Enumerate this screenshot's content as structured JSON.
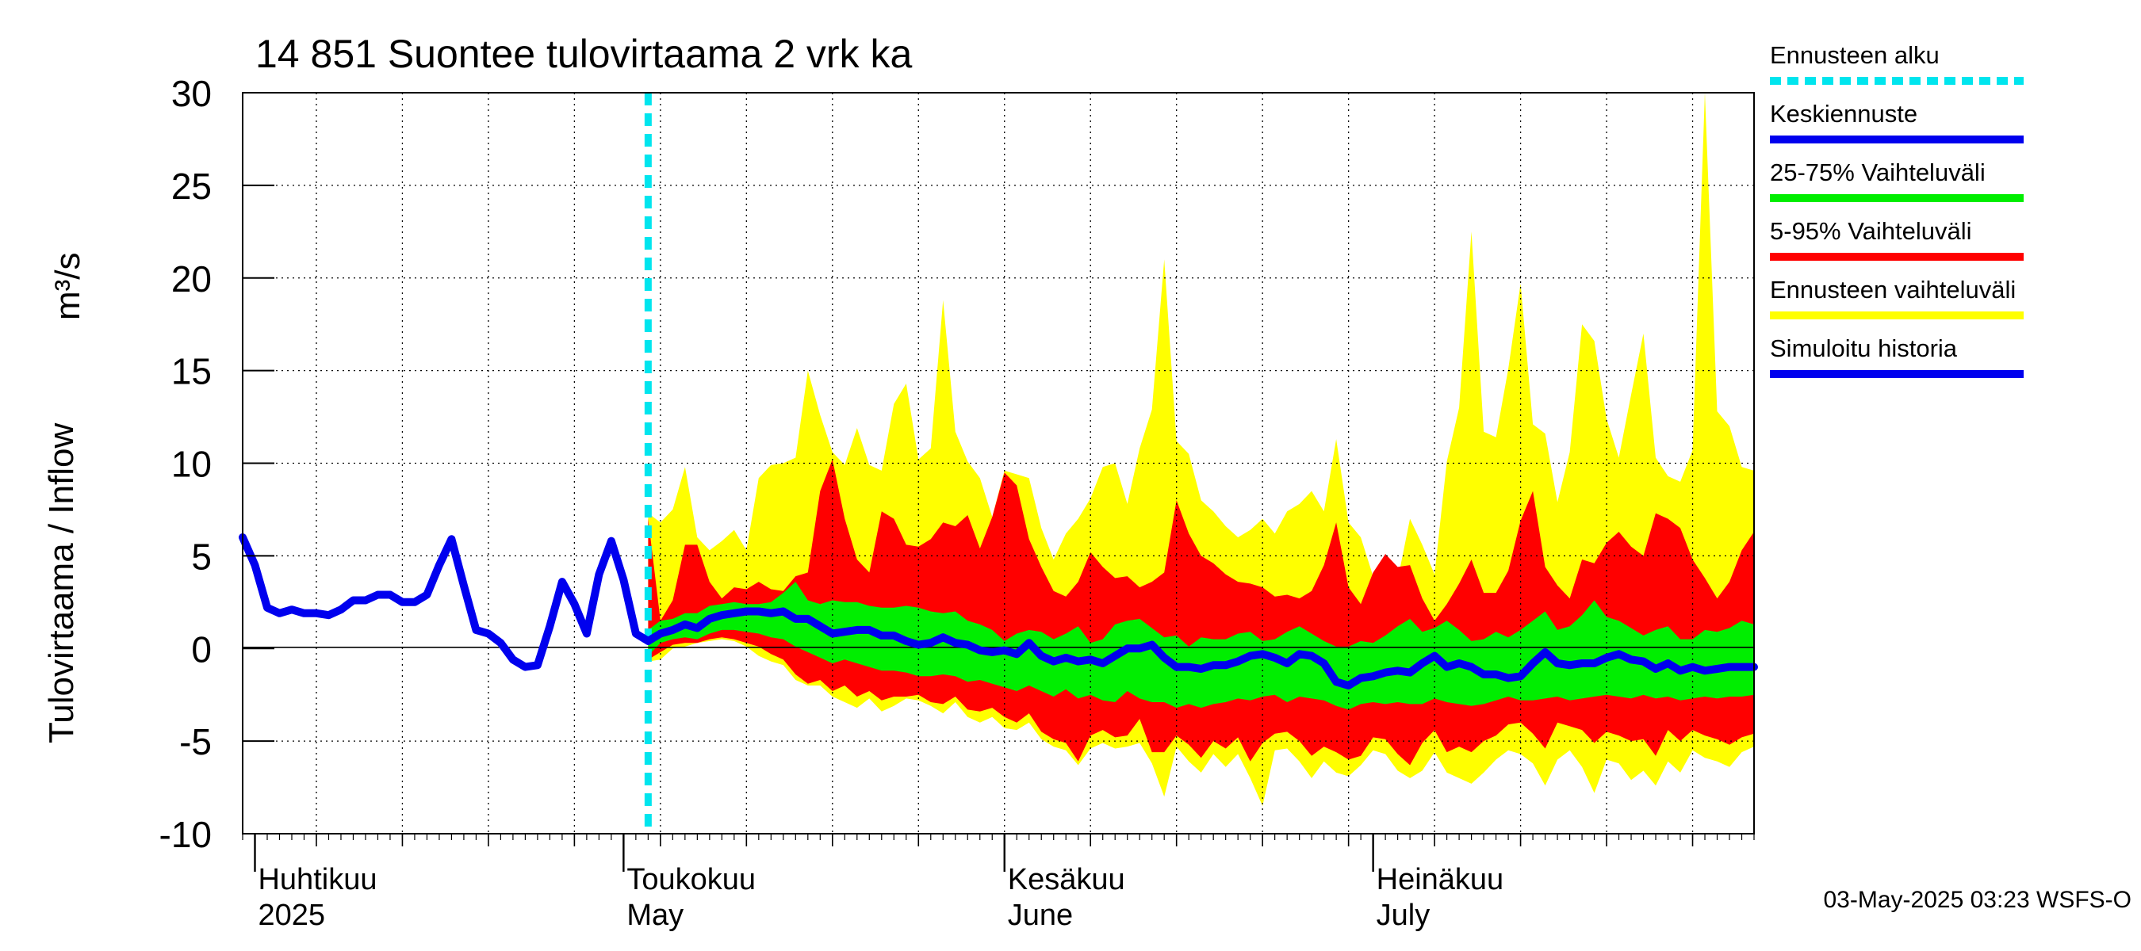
{
  "chart_data": {
    "type": "area",
    "title": "14 851 Suontee tulovirtaama 2 vrk ka",
    "ylabel": "Tulovirtaama / Inflow",
    "yunit": "m³/s",
    "ylim": [
      -10,
      30
    ],
    "yticks": [
      30,
      25,
      20,
      15,
      10,
      5,
      0,
      -5,
      -10
    ],
    "xlim": [
      "2025-03-31",
      "2025-08-01"
    ],
    "grid": true,
    "months": [
      {
        "fi": "Huhtikuu",
        "en": "2025",
        "date": "2025-04-01"
      },
      {
        "fi": "Toukokuu",
        "en": "May",
        "date": "2025-05-01"
      },
      {
        "fi": "Kesäkuu",
        "en": "June",
        "date": "2025-06-01"
      },
      {
        "fi": "Heinäkuu",
        "en": "July",
        "date": "2025-07-01"
      }
    ],
    "forecast_start": "2025-05-03",
    "legend_position": "right",
    "legend": [
      {
        "label": "Ennusteen alku",
        "color": "#00e5ee",
        "style": "dotted"
      },
      {
        "label": "Keskiennuste",
        "color": "#0000ee",
        "style": "solid"
      },
      {
        "label": "25-75% Vaihteluväli",
        "color": "#00ee00",
        "style": "solid"
      },
      {
        "label": "5-95% Vaihteluväli",
        "color": "#ff0000",
        "style": "solid"
      },
      {
        "label": "Ennusteen vaihteluväli",
        "color": "#ffff00",
        "style": "solid"
      },
      {
        "label": "Simuloitu historia",
        "color": "#0000ee",
        "style": "solid"
      }
    ],
    "history": {
      "name": "Simuloitu historia",
      "x": [
        "2025-03-31",
        "2025-04-01",
        "2025-04-02",
        "2025-04-03",
        "2025-04-04",
        "2025-04-05",
        "2025-04-06",
        "2025-04-07",
        "2025-04-08",
        "2025-04-09",
        "2025-04-10",
        "2025-04-11",
        "2025-04-12",
        "2025-04-13",
        "2025-04-14",
        "2025-04-15",
        "2025-04-16",
        "2025-04-17",
        "2025-04-18",
        "2025-04-19",
        "2025-04-20",
        "2025-04-21",
        "2025-04-22",
        "2025-04-23",
        "2025-04-24",
        "2025-04-25",
        "2025-04-26",
        "2025-04-27",
        "2025-04-28",
        "2025-04-29",
        "2025-04-30",
        "2025-05-01",
        "2025-05-02",
        "2025-05-03"
      ],
      "y": [
        6.0,
        4.5,
        2.2,
        1.9,
        2.1,
        1.9,
        1.9,
        1.8,
        2.1,
        2.6,
        2.6,
        2.9,
        2.9,
        2.5,
        2.5,
        2.9,
        4.5,
        5.9,
        3.4,
        1.0,
        0.8,
        0.3,
        -0.6,
        -1.0,
        -0.9,
        1.2,
        3.6,
        2.4,
        0.8,
        4.0,
        5.8,
        3.7,
        0.8,
        0.4
      ]
    },
    "forecast": {
      "x": [
        "2025-05-03",
        "2025-05-04",
        "2025-05-05",
        "2025-05-06",
        "2025-05-07",
        "2025-05-08",
        "2025-05-09",
        "2025-05-10",
        "2025-05-11",
        "2025-05-12",
        "2025-05-13",
        "2025-05-14",
        "2025-05-15",
        "2025-05-16",
        "2025-05-17",
        "2025-05-18",
        "2025-05-19",
        "2025-05-20",
        "2025-05-21",
        "2025-05-22",
        "2025-05-23",
        "2025-05-24",
        "2025-05-25",
        "2025-05-26",
        "2025-05-27",
        "2025-05-28",
        "2025-05-29",
        "2025-05-30",
        "2025-05-31",
        "2025-06-01",
        "2025-06-02",
        "2025-06-03",
        "2025-06-04",
        "2025-06-05",
        "2025-06-06",
        "2025-06-07",
        "2025-06-08",
        "2025-06-09",
        "2025-06-10",
        "2025-06-11",
        "2025-06-12",
        "2025-06-13",
        "2025-06-14",
        "2025-06-15",
        "2025-06-16",
        "2025-06-17",
        "2025-06-18",
        "2025-06-19",
        "2025-06-20",
        "2025-06-21",
        "2025-06-22",
        "2025-06-23",
        "2025-06-24",
        "2025-06-25",
        "2025-06-26",
        "2025-06-27",
        "2025-06-28",
        "2025-06-29",
        "2025-06-30",
        "2025-07-01",
        "2025-07-02",
        "2025-07-03",
        "2025-07-04",
        "2025-07-05",
        "2025-07-06",
        "2025-07-07",
        "2025-07-08",
        "2025-07-09",
        "2025-07-10",
        "2025-07-11",
        "2025-07-12",
        "2025-07-13",
        "2025-07-14",
        "2025-07-15",
        "2025-07-16",
        "2025-07-17",
        "2025-07-18",
        "2025-07-19",
        "2025-07-20",
        "2025-07-21",
        "2025-07-22",
        "2025-07-23",
        "2025-07-24",
        "2025-07-25",
        "2025-07-26",
        "2025-07-27",
        "2025-07-28",
        "2025-07-29",
        "2025-07-30",
        "2025-07-31",
        "2025-08-01"
      ],
      "median": [
        0.4,
        0.8,
        1.0,
        1.3,
        1.1,
        1.6,
        1.8,
        1.9,
        2.0,
        2.0,
        1.9,
        2.0,
        1.6,
        1.6,
        1.2,
        0.8,
        0.9,
        1.0,
        1.0,
        0.7,
        0.7,
        0.4,
        0.2,
        0.3,
        0.6,
        0.3,
        0.2,
        -0.1,
        -0.2,
        -0.1,
        -0.3,
        0.3,
        -0.4,
        -0.7,
        -0.5,
        -0.7,
        -0.6,
        -0.8,
        -0.4,
        0.0,
        0.0,
        0.2,
        -0.5,
        -1.0,
        -1.0,
        -1.1,
        -0.9,
        -0.9,
        -0.7,
        -0.4,
        -0.3,
        -0.5,
        -0.8,
        -0.3,
        -0.4,
        -0.8,
        -1.8,
        -2.0,
        -1.6,
        -1.5,
        -1.3,
        -1.2,
        -1.3,
        -0.8,
        -0.4,
        -1.0,
        -0.8,
        -1.0,
        -1.4,
        -1.4,
        -1.6,
        -1.5,
        -0.8,
        -0.2,
        -0.8,
        -0.9,
        -0.8,
        -0.8,
        -0.5,
        -0.3,
        -0.6,
        -0.7,
        -1.1,
        -0.8,
        -1.2,
        -1.0,
        -1.2,
        -1.1,
        -1.0,
        -1.0,
        -1.0
      ],
      "p25": [
        -0.4,
        0.3,
        0.5,
        0.6,
        0.5,
        0.8,
        1.0,
        1.0,
        0.9,
        0.8,
        0.6,
        0.5,
        0.1,
        -0.2,
        -0.5,
        -0.8,
        -0.6,
        -0.8,
        -1.0,
        -1.2,
        -1.2,
        -1.3,
        -1.5,
        -1.5,
        -1.4,
        -1.5,
        -1.8,
        -1.7,
        -1.9,
        -2.1,
        -2.3,
        -2.0,
        -2.3,
        -2.6,
        -2.2,
        -2.7,
        -2.5,
        -2.8,
        -2.9,
        -2.3,
        -2.7,
        -2.9,
        -2.9,
        -3.2,
        -3.0,
        -3.2,
        -3.0,
        -2.9,
        -2.7,
        -2.8,
        -2.6,
        -2.5,
        -2.9,
        -2.6,
        -2.7,
        -2.8,
        -3.1,
        -3.3,
        -3.0,
        -2.9,
        -3.0,
        -2.9,
        -3.0,
        -3.0,
        -2.7,
        -2.9,
        -3.0,
        -3.1,
        -3.0,
        -2.8,
        -2.6,
        -2.8,
        -2.8,
        -2.7,
        -2.6,
        -2.8,
        -2.7,
        -2.6,
        -2.5,
        -2.6,
        -2.7,
        -2.5,
        -2.7,
        -2.6,
        -2.8,
        -2.7,
        -2.6,
        -2.7,
        -2.6,
        -2.6,
        -2.5
      ],
      "p75": [
        1.0,
        1.5,
        1.6,
        1.9,
        1.9,
        2.3,
        2.4,
        2.5,
        2.4,
        2.4,
        2.5,
        3.0,
        3.6,
        2.6,
        2.4,
        2.6,
        2.5,
        2.5,
        2.3,
        2.2,
        2.2,
        2.3,
        2.2,
        2.0,
        1.9,
        2.0,
        1.5,
        1.3,
        1.0,
        0.4,
        0.8,
        1.0,
        0.9,
        0.5,
        0.8,
        1.2,
        0.3,
        0.5,
        1.3,
        1.5,
        1.6,
        1.1,
        0.6,
        0.7,
        0.1,
        0.6,
        0.5,
        0.5,
        0.8,
        0.9,
        0.4,
        0.5,
        0.9,
        1.2,
        0.8,
        0.4,
        0.1,
        0.1,
        0.4,
        0.3,
        0.7,
        1.2,
        1.6,
        0.9,
        1.1,
        1.5,
        1.0,
        0.4,
        0.5,
        0.9,
        0.6,
        1.0,
        1.5,
        2.0,
        1.0,
        1.2,
        1.8,
        2.6,
        1.7,
        1.5,
        1.1,
        0.7,
        1.0,
        1.2,
        0.5,
        0.5,
        1.0,
        0.9,
        1.1,
        1.5,
        1.3
      ],
      "p05": [
        -0.6,
        -0.2,
        0.2,
        0.3,
        0.3,
        0.5,
        0.6,
        0.5,
        0.3,
        0.1,
        -0.3,
        -0.6,
        -1.4,
        -1.9,
        -1.7,
        -2.3,
        -2.0,
        -2.6,
        -2.3,
        -2.8,
        -2.6,
        -2.6,
        -2.5,
        -2.9,
        -3.0,
        -2.6,
        -3.3,
        -3.4,
        -3.2,
        -3.7,
        -4.0,
        -3.5,
        -4.5,
        -4.9,
        -5.1,
        -6.1,
        -4.7,
        -4.4,
        -4.8,
        -4.7,
        -3.8,
        -5.6,
        -5.6,
        -4.7,
        -5.2,
        -5.9,
        -5.0,
        -5.4,
        -4.8,
        -6.1,
        -5.1,
        -4.6,
        -4.5,
        -5.0,
        -5.8,
        -5.3,
        -5.6,
        -6.0,
        -5.8,
        -4.8,
        -4.9,
        -5.7,
        -6.3,
        -5.1,
        -4.4,
        -5.6,
        -5.3,
        -5.6,
        -5.0,
        -4.7,
        -4.1,
        -4.0,
        -4.6,
        -5.4,
        -4.0,
        -4.2,
        -4.4,
        -5.1,
        -4.5,
        -4.7,
        -5.0,
        -4.9,
        -5.8,
        -4.4,
        -5.0,
        -4.4,
        -4.7,
        -4.9,
        -5.2,
        -4.8,
        -4.6
      ],
      "p95": [
        7.0,
        1.5,
        2.6,
        5.6,
        5.6,
        3.6,
        2.7,
        3.3,
        3.2,
        3.6,
        3.2,
        3.1,
        3.9,
        4.1,
        8.5,
        10.2,
        7.0,
        4.8,
        4.1,
        7.4,
        7.0,
        5.6,
        5.5,
        5.9,
        6.8,
        6.6,
        7.2,
        5.4,
        7.1,
        9.5,
        8.8,
        5.9,
        4.4,
        3.1,
        2.8,
        3.6,
        5.2,
        4.4,
        3.8,
        3.9,
        3.3,
        3.6,
        4.1,
        8.0,
        6.2,
        5.0,
        4.6,
        4.0,
        3.6,
        3.5,
        3.3,
        2.8,
        2.9,
        2.7,
        3.1,
        4.5,
        6.8,
        3.3,
        2.4,
        4.1,
        5.1,
        4.4,
        4.5,
        2.7,
        1.5,
        2.4,
        3.5,
        4.8,
        3.0,
        3.0,
        4.2,
        6.9,
        8.5,
        4.4,
        3.4,
        2.7,
        4.8,
        4.6,
        5.7,
        6.3,
        5.5,
        5.0,
        7.3,
        7.0,
        6.5,
        4.8,
        3.8,
        2.7,
        3.6,
        5.3,
        6.3
      ],
      "min": [
        -0.7,
        -0.6,
        0.0,
        0.1,
        0.3,
        0.4,
        0.5,
        0.4,
        0.1,
        -0.4,
        -0.7,
        -0.9,
        -1.7,
        -2.0,
        -2.0,
        -2.6,
        -2.9,
        -3.2,
        -2.7,
        -3.4,
        -3.1,
        -2.7,
        -2.8,
        -3.1,
        -3.5,
        -2.9,
        -3.7,
        -4.0,
        -3.7,
        -4.3,
        -4.4,
        -4.0,
        -4.9,
        -5.3,
        -5.5,
        -6.3,
        -5.4,
        -5.1,
        -5.4,
        -5.3,
        -5.1,
        -6.2,
        -8.0,
        -5.3,
        -6.1,
        -6.7,
        -5.7,
        -6.4,
        -5.7,
        -7.0,
        -8.5,
        -5.5,
        -5.4,
        -6.1,
        -7.0,
        -6.1,
        -6.7,
        -6.9,
        -6.3,
        -5.5,
        -5.7,
        -6.6,
        -7.0,
        -6.6,
        -5.6,
        -6.7,
        -7.0,
        -7.3,
        -6.7,
        -6.0,
        -5.5,
        -5.7,
        -6.2,
        -7.4,
        -6.0,
        -5.5,
        -6.4,
        -7.8,
        -6.0,
        -6.2,
        -7.1,
        -6.6,
        -7.4,
        -6.1,
        -6.7,
        -5.5,
        -5.9,
        -6.1,
        -6.4,
        -5.6,
        -5.3
      ],
      "max": [
        7.3,
        6.8,
        7.5,
        9.8,
        6.0,
        5.3,
        5.8,
        6.4,
        5.3,
        9.2,
        9.9,
        10.0,
        10.3,
        15.0,
        12.6,
        10.6,
        9.9,
        11.9,
        9.9,
        9.6,
        13.2,
        14.3,
        10.2,
        10.8,
        18.8,
        11.7,
        10.1,
        9.2,
        7.1,
        9.6,
        9.4,
        9.2,
        6.5,
        4.8,
        6.2,
        7.0,
        8.1,
        9.8,
        10.0,
        7.8,
        10.8,
        12.9,
        21.0,
        11.2,
        10.5,
        8.0,
        7.4,
        6.6,
        6.0,
        6.4,
        7.0,
        6.2,
        7.4,
        7.8,
        8.5,
        7.4,
        11.3,
        6.8,
        6.0,
        3.9,
        3.2,
        3.7,
        7.0,
        5.6,
        4.0,
        10.1,
        13.0,
        22.5,
        11.7,
        11.4,
        15.1,
        19.7,
        12.1,
        11.6,
        7.9,
        10.6,
        17.5,
        16.6,
        12.4,
        10.3,
        13.7,
        17.0,
        10.3,
        9.3,
        9.0,
        10.7,
        30.0,
        12.8,
        12.0,
        9.8,
        9.6
      ]
    }
  },
  "footer": {
    "stamp": "03-May-2025 03:23 WSFS-O"
  }
}
